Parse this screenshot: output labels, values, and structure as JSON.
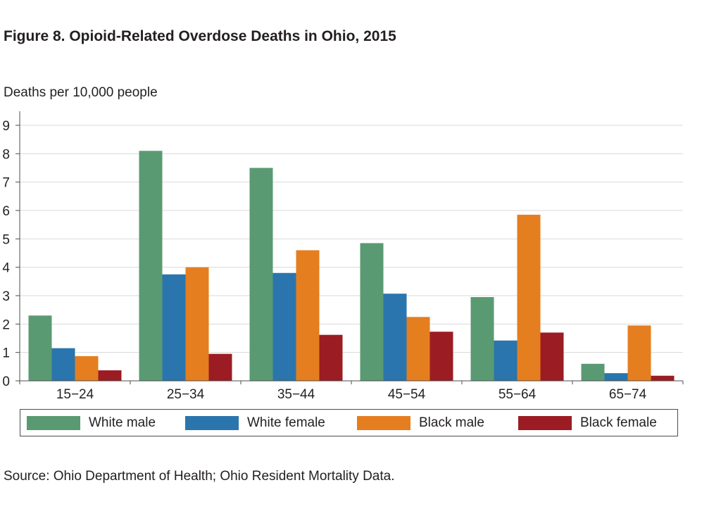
{
  "title": "Figure 8. Opioid-Related Overdose Deaths in Ohio, 2015",
  "unit_label": "Deaths per 10,000 people",
  "source": "Source: Ohio Department of Health; Ohio Resident Mortality Data.",
  "chart_data": {
    "type": "bar",
    "title": "Figure 8. Opioid-Related Overdose Deaths in Ohio, 2015",
    "xlabel": "",
    "ylabel": "Deaths per 10,000 people",
    "ylim": [
      0,
      9
    ],
    "yticks": [
      "0",
      "1",
      "2",
      "3",
      "4",
      "5",
      "6",
      "7",
      "8",
      "9"
    ],
    "grid": true,
    "legend_position": "bottom",
    "categories": [
      "15−24",
      "25−34",
      "35−44",
      "45−54",
      "55−64",
      "65−74"
    ],
    "series": [
      {
        "name": "White male",
        "color": "#5a9a72",
        "values": [
          2.3,
          8.1,
          7.5,
          4.85,
          2.95,
          0.6
        ]
      },
      {
        "name": "White female",
        "color": "#2a75ad",
        "values": [
          1.15,
          3.75,
          3.8,
          3.07,
          1.42,
          0.27
        ]
      },
      {
        "name": "Black male",
        "color": "#e57e1f",
        "values": [
          0.87,
          4.0,
          4.6,
          2.25,
          5.85,
          1.95
        ]
      },
      {
        "name": "Black female",
        "color": "#9b1c22",
        "values": [
          0.37,
          0.95,
          1.62,
          1.73,
          1.7,
          0.18
        ]
      }
    ]
  }
}
